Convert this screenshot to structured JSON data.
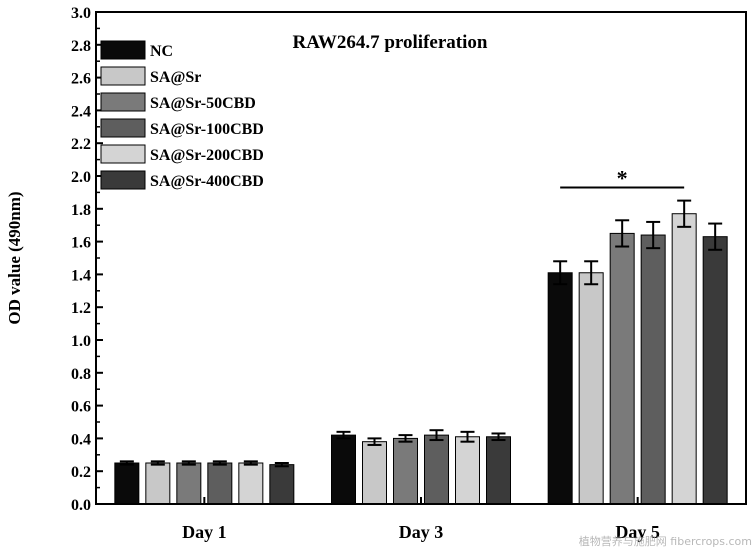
{
  "chart_data": {
    "type": "bar",
    "title": "RAW264.7 proliferation",
    "ylabel": "OD value (490nm)",
    "xlabel": "",
    "ylim": [
      0.0,
      3.0
    ],
    "yticks": [
      "0.0",
      "0.2",
      "0.4",
      "0.6",
      "0.8",
      "1.0",
      "1.2",
      "1.4",
      "1.6",
      "1.8",
      "2.0",
      "2.2",
      "2.4",
      "2.6",
      "2.8",
      "3.0"
    ],
    "categories": [
      "Day 1",
      "Day 3",
      "Day 5"
    ],
    "series": [
      {
        "name": "NC",
        "color": "#0a0a0a",
        "values": [
          0.25,
          0.42,
          1.41
        ],
        "errors": [
          0.01,
          0.02,
          0.07
        ]
      },
      {
        "name": "SA@Sr",
        "color": "#c8c8c8",
        "values": [
          0.25,
          0.38,
          1.41
        ],
        "errors": [
          0.01,
          0.02,
          0.07
        ]
      },
      {
        "name": "SA@Sr-50CBD",
        "color": "#7a7a7a",
        "values": [
          0.25,
          0.4,
          1.65
        ],
        "errors": [
          0.01,
          0.02,
          0.08
        ]
      },
      {
        "name": "SA@Sr-100CBD",
        "color": "#5e5e5e",
        "values": [
          0.25,
          0.42,
          1.64
        ],
        "errors": [
          0.01,
          0.03,
          0.08
        ]
      },
      {
        "name": "SA@Sr-200CBD",
        "color": "#d4d4d4",
        "values": [
          0.25,
          0.41,
          1.77
        ],
        "errors": [
          0.01,
          0.03,
          0.08
        ]
      },
      {
        "name": "SA@Sr-400CBD",
        "color": "#3a3a3a",
        "values": [
          0.24,
          0.41,
          1.63
        ],
        "errors": [
          0.01,
          0.02,
          0.08
        ]
      }
    ],
    "significance": {
      "label": "*",
      "between": [
        "NC",
        "SA@Sr-200CBD"
      ],
      "category": "Day 5",
      "y": 1.93
    },
    "legend": "top-left",
    "grid": false
  },
  "watermark": "植物营养与施肥网 fibercrops.com"
}
